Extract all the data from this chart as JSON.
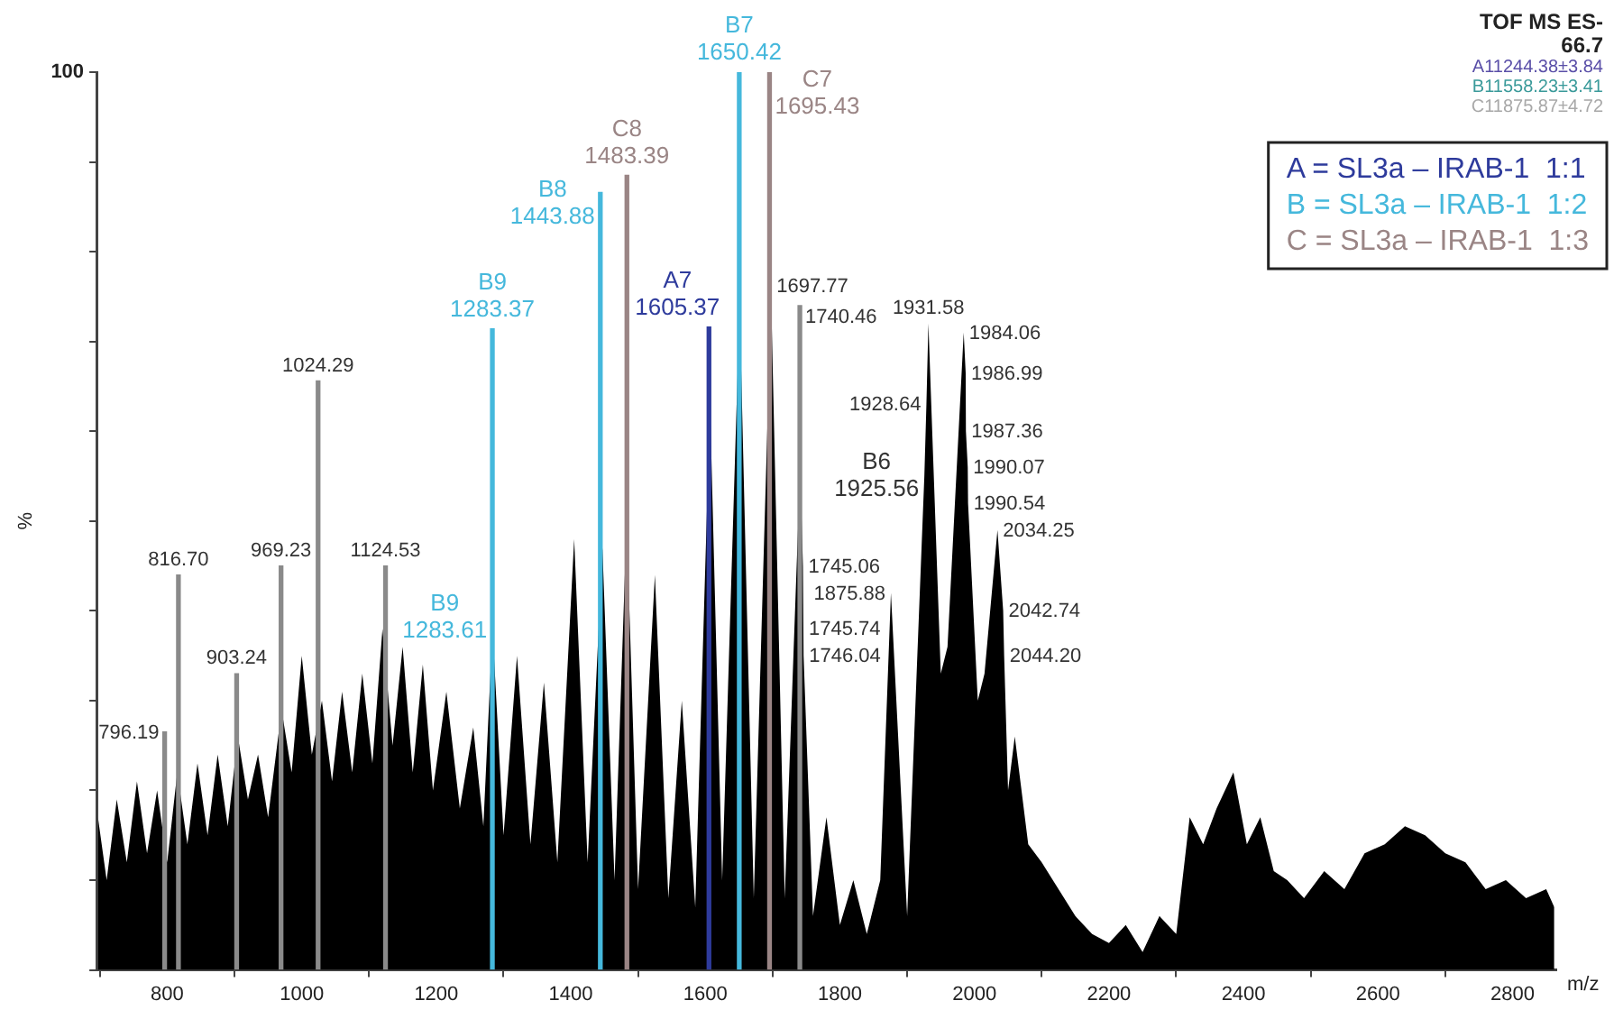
{
  "chart_data": {
    "type": "bar",
    "xlabel": "m/z",
    "ylabel": "%",
    "xlim": [
      695,
      2865
    ],
    "xticks": [
      800,
      1000,
      1200,
      1400,
      1600,
      1800,
      2000,
      2200,
      2400,
      2600,
      2800
    ],
    "ylim": [
      0,
      100
    ],
    "yticks": [
      0,
      {
        "value": 10,
        "label": null
      },
      {
        "value": 20,
        "label": null
      },
      {
        "value": 30,
        "label": null
      },
      {
        "value": 40,
        "label": null
      },
      {
        "value": 50,
        "label": null
      },
      {
        "value": 60,
        "label": null
      },
      {
        "value": 70,
        "label": null
      },
      {
        "value": 80,
        "label": null
      },
      {
        "value": 90,
        "label": null
      },
      100
    ],
    "grid": false,
    "legend": "top right",
    "marker": "none",
    "series": [
      {
        "type": "area",
        "color": "#000000",
        "x": [
          697,
          710,
          725,
          740,
          755,
          770,
          785,
          800,
          815,
          830,
          845,
          860,
          875,
          890,
          905,
          920,
          935,
          950,
          970,
          985,
          1000,
          1015,
          1030,
          1045,
          1060,
          1075,
          1090,
          1105,
          1120,
          1135,
          1150,
          1165,
          1180,
          1195,
          1215,
          1235,
          1255,
          1270,
          1283.61,
          1300,
          1320,
          1340,
          1360,
          1380,
          1405,
          1425,
          1447,
          1465,
          1483,
          1500,
          1525,
          1545,
          1565,
          1585,
          1607,
          1625,
          1651,
          1672,
          1697.77,
          1718,
          1741,
          1745.06,
          1746.04,
          1760,
          1780,
          1800,
          1820,
          1840,
          1860,
          1875.88,
          1900,
          1925.56,
          1928.64,
          1931.58,
          1950,
          1960,
          1984.06,
          1986.99,
          1987.36,
          1990.07,
          1990.54,
          2005,
          2015,
          2034.25,
          2042.74,
          2044.2,
          2050,
          2060,
          2080,
          2100,
          2125,
          2150,
          2175,
          2200,
          2225,
          2250,
          2275,
          2300,
          2320,
          2340,
          2360,
          2385,
          2405,
          2425,
          2445,
          2465,
          2490,
          2520,
          2550,
          2580,
          2610,
          2640,
          2670,
          2700,
          2730,
          2760,
          2790,
          2820,
          2850,
          2862
        ],
        "values": [
          17,
          10,
          19,
          12,
          21,
          13,
          20,
          12,
          22,
          14,
          23,
          15,
          24,
          16,
          26,
          19,
          24,
          17,
          29,
          22,
          35,
          24,
          30,
          21,
          31,
          22,
          33,
          23,
          38,
          25,
          36,
          22,
          34,
          20,
          31,
          18,
          27,
          16,
          38,
          15,
          35,
          14,
          32,
          12,
          48,
          12,
          47,
          10,
          50,
          9,
          44,
          8,
          30,
          7,
          63,
          10,
          74,
          8,
          75,
          8,
          56,
          45,
          35,
          6,
          17,
          5,
          10,
          4,
          10,
          42,
          6,
          55,
          63,
          72,
          33,
          36,
          71,
          66.5,
          60,
          56,
          52,
          30,
          33,
          49,
          40,
          35,
          20,
          26,
          14,
          12,
          9,
          6,
          4,
          3,
          5,
          2,
          6,
          4,
          17,
          14,
          18,
          22,
          14,
          17,
          11,
          10,
          8,
          11,
          9,
          13,
          14,
          16,
          15,
          13,
          12,
          9,
          10,
          8,
          9,
          7
        ]
      },
      {
        "name": "A = SL3a – IRAB-1  1:1",
        "color": "#2e3b9c",
        "x": [
          1605.37
        ],
        "values": [
          71.6
        ]
      },
      {
        "name": "B = SL3a – IRAB-1  1:2",
        "color": "#45b8dc",
        "x": [
          1283.37,
          1443.88,
          1650.42
        ],
        "values": [
          71.4,
          86.6,
          100
        ]
      },
      {
        "name": "C = SL3a – IRAB-1  1:3",
        "color": "#9a8585",
        "x": [
          1483.39,
          1695.43
        ],
        "values": [
          88.5,
          100
        ]
      },
      {
        "color": "#8a8a8a",
        "x": [
          796.19,
          816.7,
          903.24,
          969.23,
          1024.29,
          1124.53,
          1740.46
        ],
        "values": [
          26.5,
          44,
          33,
          45,
          65.6,
          45,
          74
        ]
      }
    ],
    "annotations": [
      "TOF MS ES-",
      "66.7",
      "A11244.38±3.84",
      "B11558.23±3.41",
      "C11875.87±4.72",
      {
        "text": "B7\n1650.42",
        "x": 1650.42,
        "y": 100
      },
      {
        "text": "C7\n1695.43",
        "x": 1695.43,
        "y": 100
      },
      {
        "text": "C8\n1483.39",
        "x": 1483.39,
        "y": 88.5
      },
      {
        "text": "B8\n1443.88",
        "x": 1443.88,
        "y": 86.6
      },
      {
        "text": "A7\n1605.37",
        "x": 1605.37,
        "y": 71.6
      },
      {
        "text": "B9\n1283.37",
        "x": 1283.37,
        "y": 71.4
      },
      {
        "text": "B9\n1283.61",
        "x": 1283.61,
        "y": 38
      },
      {
        "text": "B6\n1925.56",
        "x": 1925.56,
        "y": 55
      },
      {
        "text": "1024.29",
        "x": 1024.29,
        "y": 65.6
      },
      {
        "text": "816.70",
        "x": 816.7,
        "y": 44
      },
      {
        "text": "969.23",
        "x": 969.23,
        "y": 45
      },
      {
        "text": "1124.53",
        "x": 1124.53,
        "y": 45
      },
      {
        "text": "903.24",
        "x": 903.24,
        "y": 33
      },
      {
        "text": "796.19",
        "x": 796.19,
        "y": 26.5
      },
      {
        "text": "1697.77",
        "x": 1697.77,
        "y": 75
      },
      {
        "text": "1740.46",
        "x": 1740.46,
        "y": 74
      },
      {
        "text": "1931.58",
        "x": 1931.58,
        "y": 72
      },
      {
        "text": "1984.06",
        "x": 1984.06,
        "y": 71
      },
      {
        "text": "1928.64",
        "x": 1928.64,
        "y": 63
      },
      {
        "text": "1986.99",
        "x": 1986.99,
        "y": 66.5
      },
      {
        "text": "1987.36",
        "x": 1987.36,
        "y": 60
      },
      {
        "text": "1990.07",
        "x": 1990.07,
        "y": 56
      },
      {
        "text": "1990.54",
        "x": 1990.54,
        "y": 52
      },
      {
        "text": "2034.25",
        "x": 2034.25,
        "y": 49
      },
      {
        "text": "2042.74",
        "x": 2042.74,
        "y": 40
      },
      {
        "text": "2044.20",
        "x": 2044.2,
        "y": 35
      },
      {
        "text": "1745.06",
        "x": 1745.06,
        "y": 45
      },
      {
        "text": "1745.74",
        "x": 1745.74,
        "y": 38
      },
      {
        "text": "1875.88",
        "x": 1875.88,
        "y": 42
      },
      {
        "text": "1746.04",
        "x": 1746.04,
        "y": 35
      }
    ]
  }
}
